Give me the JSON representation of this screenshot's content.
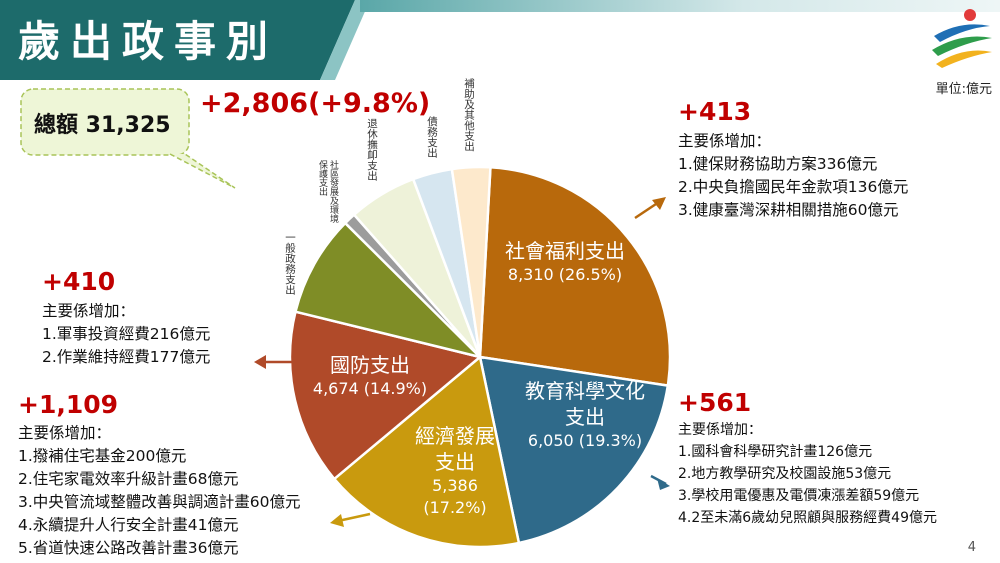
{
  "page": {
    "title": "歲出政事別",
    "unit": "單位:億元",
    "page_number": "4"
  },
  "total": {
    "label": "總額 31,325",
    "change": "+2,806(+9.8%)"
  },
  "colors": {
    "banner": "#1d6b6b",
    "accent_red": "#c00000"
  },
  "chart_data": {
    "type": "pie",
    "slices": [
      {
        "name": "社會福利支出",
        "value": 8310,
        "pct": "26.5%",
        "value_label": "8,310 (26.5%)",
        "color": "#b8690c"
      },
      {
        "name": "教育科學文化支出",
        "value": 6050,
        "pct": "19.3%",
        "value_label": "6,050 (19.3%)",
        "color": "#2f6a8a"
      },
      {
        "name": "經濟發展支出",
        "value": 5386,
        "pct": "17.2%",
        "value_label": "5,386 (17.2%)",
        "color": "#c99a0e"
      },
      {
        "name": "國防支出",
        "value": 4674,
        "pct": "14.9%",
        "value_label": "4,674 (14.9%)",
        "color": "#b04a29"
      },
      {
        "name": "一般政務支出",
        "value": 2700,
        "color": "#7f8d26"
      },
      {
        "name": "社區發展及環境保護支出",
        "value": 320,
        "color": "#9c9c9c"
      },
      {
        "name": "退休撫卹支出",
        "value": 1820,
        "color": "#eef2d9"
      },
      {
        "name": "債務支出",
        "value": 1050,
        "color": "#d6e6f0"
      },
      {
        "name": "補助及其他支出",
        "value": 1015,
        "color": "#fde9cc"
      }
    ]
  },
  "labels": {
    "social": {
      "name": "社會福利支出",
      "value": "8,310 (26.5%)"
    },
    "education": {
      "name1": "教育科學文化",
      "name2": "支出",
      "value": "6,050 (19.3%)"
    },
    "economy": {
      "name1": "經濟發展",
      "name2": "支出",
      "value1": "5,386",
      "value2": "(17.2%)"
    },
    "defense": {
      "name": "國防支出",
      "value": "4,674 (14.9%)"
    },
    "general": "一般政務支出",
    "community": "社區發展及環境保護支出",
    "retire": "退休撫卹支出",
    "debt": "債務支出",
    "subsidy": "補助及其他支出"
  },
  "increases": {
    "social": {
      "amount": "+413",
      "heading": "主要係增加：",
      "items": [
        "1.健保財務協助方案336億元",
        "2.中央負擔國民年金款項136億元",
        "3.健康臺灣深耕相關措施60億元"
      ]
    },
    "education": {
      "amount": "+561",
      "heading": "主要係增加：",
      "items": [
        "1.國科會科學研究計畫126億元",
        "2.地方教學研究及校園設施53億元",
        "3.學校用電優惠及電價凍漲差額59億元",
        "4.2至未滿6歲幼兒照顧與服務經費49億元"
      ]
    },
    "defense": {
      "amount": "+410",
      "heading": "主要係增加：",
      "items": [
        "1.軍事投資經費216億元",
        "2.作業維持經費177億元"
      ]
    },
    "economy": {
      "amount": "+1,109",
      "heading": "主要係增加：",
      "items": [
        "1.撥補住宅基金200億元",
        "2.住宅家電效率升級計畫68億元",
        "3.中央管流域整體改善與調適計畫60億元",
        "4.永續提升人行安全計畫41億元",
        "5.省道快速公路改善計畫36億元"
      ]
    }
  }
}
